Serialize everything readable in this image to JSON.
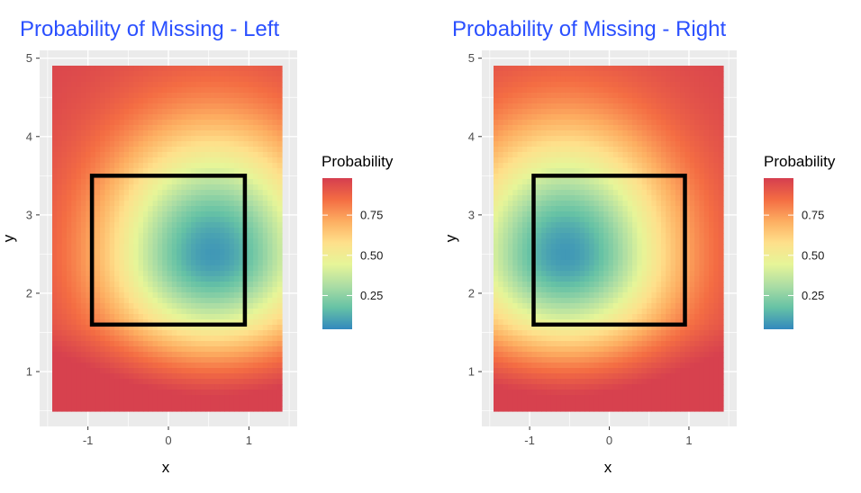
{
  "chart_data": [
    {
      "type": "heatmap",
      "title": "Probability of Missing - Left",
      "xlabel": "x",
      "ylabel": "y",
      "xlim": [
        -1.6,
        1.6
      ],
      "ylim": [
        0.3,
        5.1
      ],
      "x_ticks": [
        "-1",
        "0",
        "1"
      ],
      "y_ticks": [
        "1",
        "2",
        "3",
        "4",
        "5"
      ],
      "grid": true,
      "legend_title": "Probability",
      "legend_labels": [
        "0.25",
        "0.50",
        "0.75"
      ],
      "legend_values": [
        0.25,
        0.5,
        0.75
      ],
      "zone": {
        "xmin": -0.95,
        "xmax": 0.95,
        "ymin": 1.6,
        "ymax": 3.5
      },
      "surface": {
        "center_x": 0.55,
        "center_y": 2.5,
        "radius_x": 1.25,
        "radius_y": 1.25,
        "min": 0.04,
        "max": 0.98,
        "corner_bias": "right"
      }
    },
    {
      "type": "heatmap",
      "title": "Probability of Missing - Right",
      "xlabel": "x",
      "ylabel": "y",
      "xlim": [
        -1.6,
        1.6
      ],
      "ylim": [
        0.3,
        5.1
      ],
      "x_ticks": [
        "-1",
        "0",
        "1"
      ],
      "y_ticks": [
        "1",
        "2",
        "3",
        "4",
        "5"
      ],
      "grid": true,
      "legend_title": "Probability",
      "legend_labels": [
        "0.25",
        "0.50",
        "0.75"
      ],
      "legend_values": [
        0.25,
        0.5,
        0.75
      ],
      "zone": {
        "xmin": -0.95,
        "xmax": 0.95,
        "ymin": 1.6,
        "ymax": 3.5
      },
      "surface": {
        "center_x": -0.55,
        "center_y": 2.5,
        "radius_x": 1.25,
        "radius_y": 1.25,
        "min": 0.04,
        "max": 0.98,
        "corner_bias": "left"
      }
    }
  ],
  "colors": {
    "title": "#2b50ff",
    "panel_bg": "#ebebeb",
    "grid_line": "#ffffff",
    "zone_stroke": "#000000",
    "palette": [
      "#3288bd",
      "#66c2a5",
      "#abdda4",
      "#e6f598",
      "#fee08b",
      "#fdae61",
      "#f46d43",
      "#d53e4f"
    ]
  }
}
